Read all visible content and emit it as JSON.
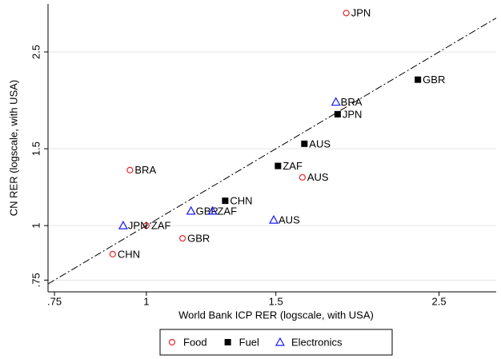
{
  "chart_data": {
    "type": "scatter",
    "x_label": "World Bank ICP RER (logscale, with USA)",
    "y_label": "CN RER (logscale, with USA)",
    "log_x": true,
    "log_y": true,
    "grid": true,
    "xlim": [
      0.735,
      2.99
    ],
    "ylim": [
      0.705,
      3.22
    ],
    "xticks": [
      {
        "value": 0.75,
        "label": ".75"
      },
      1,
      1.5,
      2.5
    ],
    "yticks": [
      {
        "value": 0.75,
        "label": ".75"
      },
      1,
      1.5,
      2.5
    ],
    "legend": "bottom",
    "series": [
      {
        "name": "Food",
        "color": "#e8262b",
        "marker": "circle",
        "labels": [
          "JPN",
          "BRA",
          "AUS",
          "ZAF",
          "GBR",
          "CHN"
        ],
        "x": [
          1.87,
          0.95,
          1.63,
          1.0,
          1.12,
          0.9
        ],
        "y": [
          3.07,
          1.34,
          1.29,
          1.0,
          0.935,
          0.86
        ]
      },
      {
        "name": "Fuel",
        "color": "#000000",
        "marker": "square",
        "labels": [
          "GBR",
          "JPN",
          "AUS",
          "ZAF",
          "CHN"
        ],
        "x": [
          2.34,
          1.82,
          1.64,
          1.51,
          1.28
        ],
        "y": [
          2.16,
          1.8,
          1.54,
          1.37,
          1.14
        ]
      },
      {
        "name": "Electronics",
        "color": "#1a1aff",
        "marker": "triangle",
        "labels": [
          "BRA",
          "GBR",
          "ZAF",
          "AUS",
          "JPN"
        ],
        "x": [
          1.81,
          1.15,
          1.23,
          1.49,
          0.93
        ],
        "y": [
          1.92,
          1.08,
          1.08,
          1.03,
          1.0
        ]
      }
    ]
  }
}
